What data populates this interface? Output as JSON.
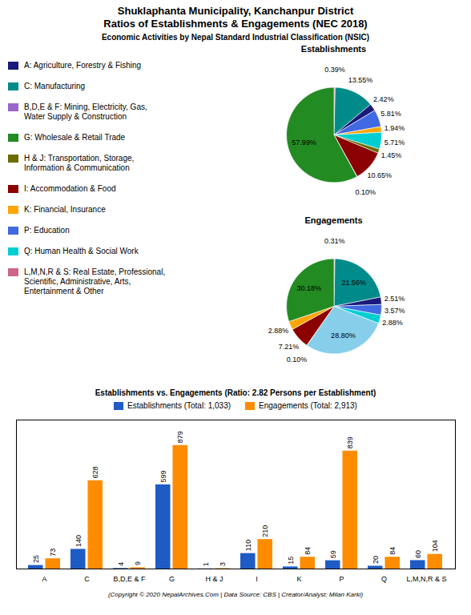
{
  "chart_data": [
    {
      "type": "legend",
      "title": "Shuklaphanta Municipality, Kanchanpur District\nRatios of Establishments & Engagements (NEC 2018)",
      "subtitle": "Economic Activities by Nepal Standard Industrial Classification (NSIC)",
      "categories": [
        "A: Agriculture, Forestry & Fishing",
        "C: Manufacturing",
        "B,D,E & F: Mining, Electricity, Gas,\nWater Supply & Construction",
        "G: Wholesale & Retail Trade",
        "H & J: Transportation, Storage,\nInformation & Communication",
        "I: Accommodation & Food",
        "K: Financial, Insurance",
        "P: Education",
        "Q: Human Health & Social Work",
        "L,M,N,R & S: Real Estate, Professional,\nScientific, Administrative, Arts,\nEntertainment & Other"
      ],
      "colors": [
        "#1a1a7a",
        "#008B8B",
        "#9966CC",
        "#228B22",
        "#6B6B00",
        "#8B0000",
        "#FFA500",
        "#4169E1",
        "#00CED1",
        "#CC6688"
      ]
    },
    {
      "type": "pie",
      "title": "Establishments",
      "values": [
        0.39,
        13.55,
        2.42,
        5.81,
        1.94,
        5.71,
        1.45,
        10.65,
        0.1,
        57.99
      ],
      "value_labels": [
        "0.39%",
        "13.55%",
        "2.42%",
        "5.81%",
        "1.94%",
        "5.71%",
        "1.45%",
        "10.65%",
        "0.10%",
        "57.99%"
      ],
      "colors": [
        "#CC6688",
        "#008B8B",
        "#1a1a7a",
        "#4169E1",
        "#FFA500",
        "#00CED1",
        "#6B6B00",
        "#8B0000",
        "#9966CC",
        "#228B22"
      ],
      "data_labels": true
    },
    {
      "type": "pie",
      "title": "Engagements",
      "values": [
        0.31,
        21.56,
        2.51,
        3.57,
        2.88,
        28.8,
        0.1,
        7.21,
        2.88,
        30.18
      ],
      "value_labels": [
        "0.31%",
        "21.56%",
        "2.51%",
        "3.57%",
        "2.88%",
        "28.80%",
        "0.10%",
        "7.21%",
        "2.88%",
        "30.18%"
      ],
      "colors": [
        "#CC6688",
        "#008B8B",
        "#1a1a7a",
        "#4169E1",
        "#00CED1",
        "#87CEEB",
        "#9966CC",
        "#8B0000",
        "#FFA500",
        "#228B22"
      ],
      "data_labels": true
    },
    {
      "type": "bar",
      "title": "Establishments vs. Engagements (Ratio: 2.82 Persons per Establishment)",
      "categories": [
        "A",
        "C",
        "B,D,E & F",
        "G",
        "H & J",
        "I",
        "K",
        "P",
        "Q",
        "L,M,N,R & S"
      ],
      "series": [
        {
          "name": "Establishments (Total: 1,033)",
          "color": "#1F5BC4",
          "values": [
            25,
            140,
            4,
            599,
            1,
            110,
            15,
            59,
            20,
            60
          ]
        },
        {
          "name": "Engagements (Total: 2,913)",
          "color": "#FF8C00",
          "values": [
            73,
            628,
            9,
            879,
            3,
            210,
            84,
            839,
            84,
            104
          ]
        }
      ],
      "ylim": [
        0,
        1060
      ],
      "grid": false,
      "legend": "top",
      "tick_labels": "x",
      "data_labels": true,
      "annotations": [
        "(Copyright © 2020 NepalArchives.Com | Data Source: CBS | Creator/Analyst: Milan Karki)"
      ]
    }
  ]
}
